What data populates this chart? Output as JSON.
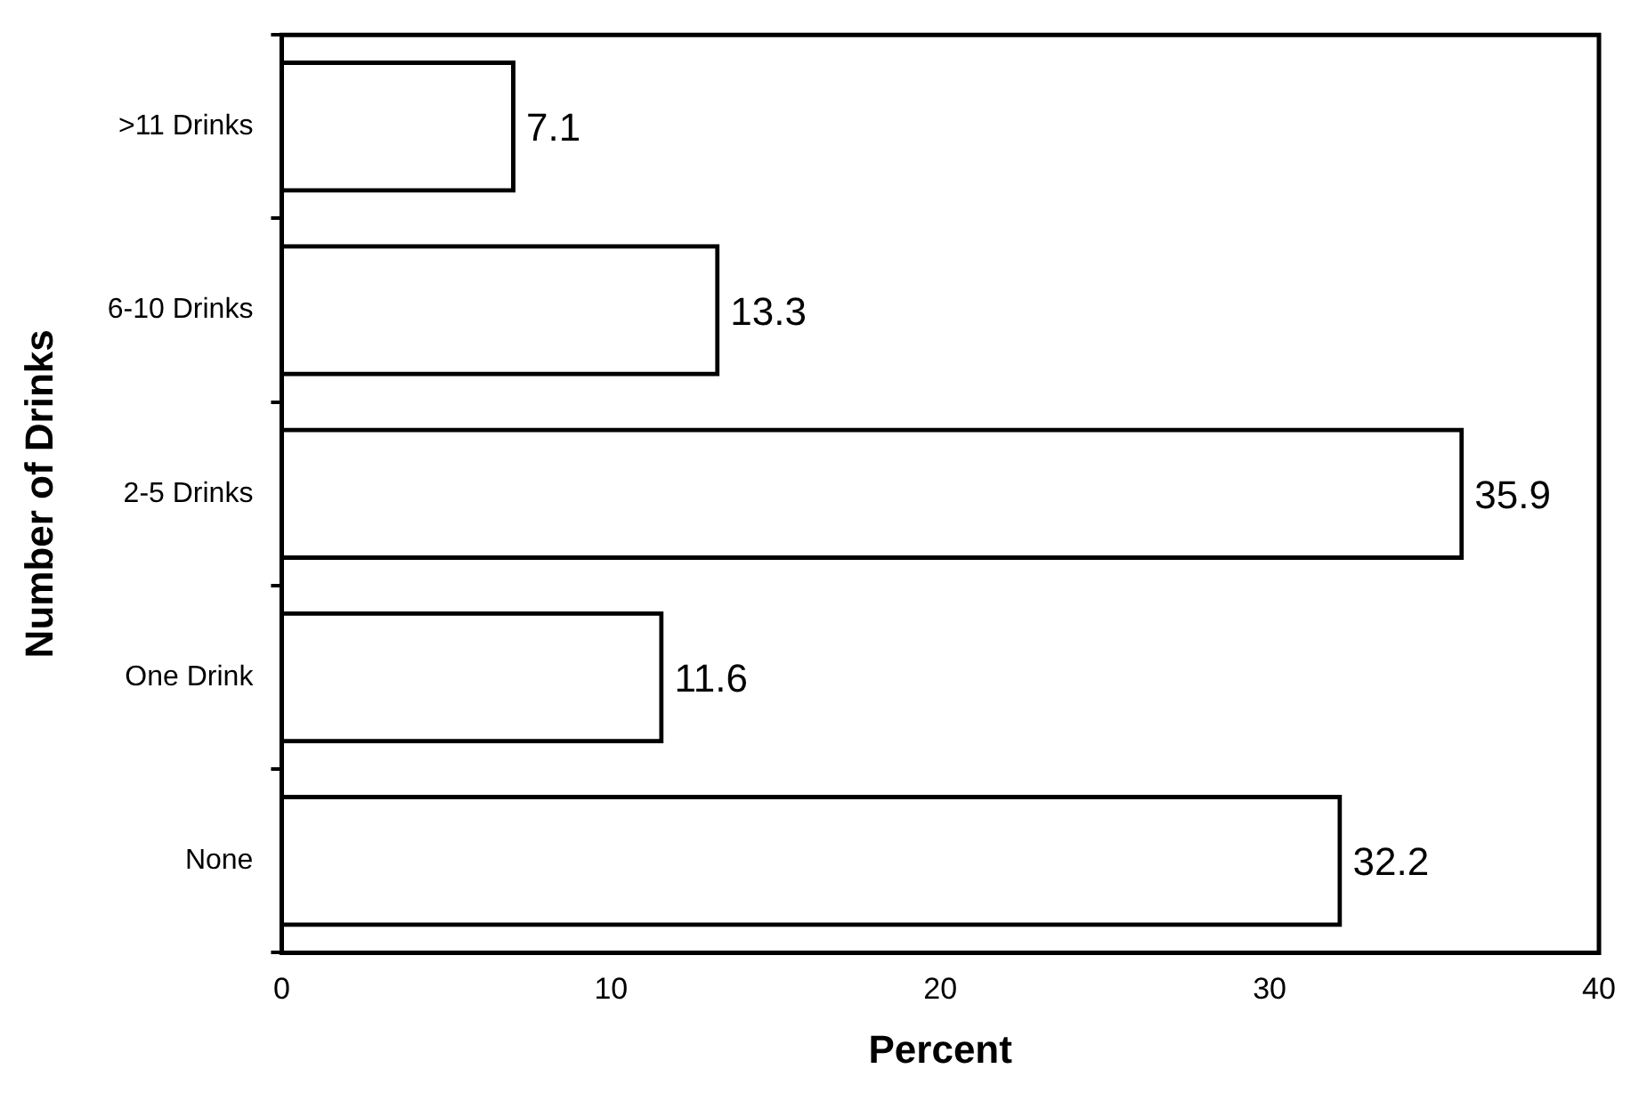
{
  "chart_data": {
    "type": "bar",
    "orientation": "horizontal",
    "xlabel": "Percent",
    "ylabel": "Number of Drinks",
    "categories": [
      ">11 Drinks",
      "6-10 Drinks",
      "2-5 Drinks",
      "One Drink",
      "None"
    ],
    "values": [
      7.1,
      13.3,
      35.9,
      11.6,
      32.2
    ],
    "color": "#000000",
    "xlim": [
      0,
      40
    ],
    "xticks": [
      0,
      10,
      20,
      30,
      40
    ],
    "grid": false,
    "data_labels": true,
    "legend": false
  }
}
